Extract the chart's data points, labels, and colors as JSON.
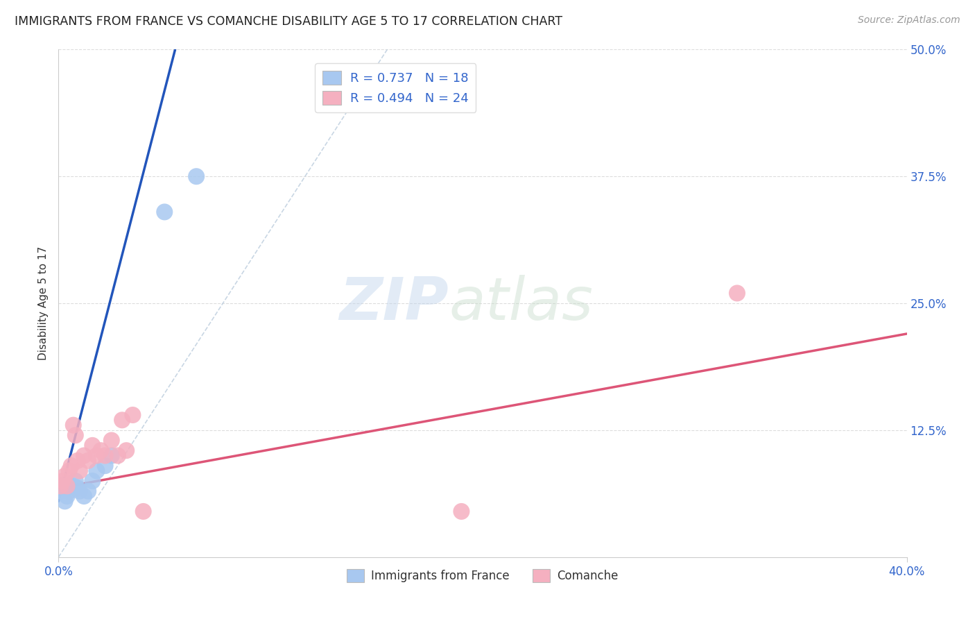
{
  "title": "IMMIGRANTS FROM FRANCE VS COMANCHE DISABILITY AGE 5 TO 17 CORRELATION CHART",
  "source": "Source: ZipAtlas.com",
  "ylabel": "Disability Age 5 to 17",
  "xlim": [
    0.0,
    0.4
  ],
  "ylim": [
    0.0,
    0.5
  ],
  "xtick_positions": [
    0.0,
    0.4
  ],
  "xtick_labels": [
    "0.0%",
    "40.0%"
  ],
  "ytick_positions": [
    0.125,
    0.25,
    0.375,
    0.5
  ],
  "ytick_labels": [
    "12.5%",
    "25.0%",
    "37.5%",
    "50.0%"
  ],
  "watermark_zip": "ZIP",
  "watermark_atlas": "atlas",
  "blue_color": "#A8C8F0",
  "pink_color": "#F5B0C0",
  "blue_line_color": "#2255BB",
  "pink_line_color": "#DD5577",
  "blue_scatter_x": [
    0.001,
    0.002,
    0.003,
    0.004,
    0.005,
    0.006,
    0.007,
    0.008,
    0.009,
    0.01,
    0.012,
    0.014,
    0.016,
    0.018,
    0.022,
    0.025,
    0.05,
    0.065
  ],
  "blue_scatter_y": [
    0.065,
    0.07,
    0.055,
    0.06,
    0.065,
    0.07,
    0.07,
    0.075,
    0.068,
    0.065,
    0.06,
    0.065,
    0.075,
    0.085,
    0.09,
    0.1,
    0.34,
    0.375
  ],
  "pink_scatter_x": [
    0.001,
    0.002,
    0.003,
    0.004,
    0.005,
    0.006,
    0.007,
    0.008,
    0.009,
    0.01,
    0.012,
    0.014,
    0.016,
    0.018,
    0.02,
    0.022,
    0.025,
    0.028,
    0.03,
    0.032,
    0.035,
    0.04,
    0.19,
    0.32
  ],
  "pink_scatter_y": [
    0.07,
    0.075,
    0.08,
    0.07,
    0.085,
    0.09,
    0.13,
    0.12,
    0.095,
    0.085,
    0.1,
    0.095,
    0.11,
    0.1,
    0.105,
    0.1,
    0.115,
    0.1,
    0.135,
    0.105,
    0.14,
    0.045,
    0.045,
    0.26
  ],
  "blue_line_x": [
    0.0,
    0.055
  ],
  "blue_line_y": [
    0.055,
    0.5
  ],
  "pink_line_x": [
    0.0,
    0.4
  ],
  "pink_line_y": [
    0.068,
    0.22
  ],
  "ref_line_x": [
    0.0,
    0.155
  ],
  "ref_line_y": [
    0.0,
    0.5
  ],
  "grid_yticks": [
    0.125,
    0.25,
    0.375,
    0.5
  ],
  "grid_color": "#DDDDDD",
  "spine_color": "#CCCCCC",
  "text_color_blue": "#3366CC",
  "text_color_dark": "#333333",
  "text_color_source": "#999999"
}
